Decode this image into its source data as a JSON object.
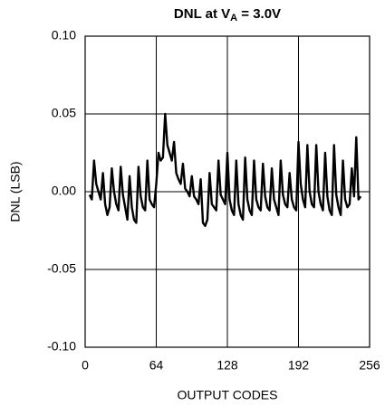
{
  "chart_data": {
    "type": "line",
    "title": [
      "DNL at V",
      "A",
      " = 3.0V"
    ],
    "x_label": "OUTPUT CODES",
    "y_label": "DNL (LSB)",
    "xlim": [
      0,
      256
    ],
    "xticks": [
      0,
      64,
      128,
      192,
      256
    ],
    "ylim": [
      -0.1,
      0.1
    ],
    "yticks": [
      {
        "value": -0.1,
        "label": "-0.10"
      },
      -0.05,
      {
        "value": 0,
        "label": "0.00"
      },
      0.05,
      {
        "value": 0.1,
        "label": "0.10"
      }
    ],
    "grid": true,
    "series": [
      {
        "color": "#000000",
        "x": [
          4,
          6,
          8,
          10,
          12,
          14,
          16,
          18,
          20,
          22,
          24,
          26,
          28,
          30,
          32,
          34,
          36,
          38,
          40,
          42,
          44,
          46,
          48,
          50,
          52,
          54,
          56,
          58,
          60,
          62,
          64,
          66,
          68,
          70,
          72,
          74,
          76,
          78,
          80,
          82,
          84,
          86,
          88,
          90,
          92,
          94,
          96,
          98,
          100,
          102,
          104,
          106,
          108,
          110,
          112,
          114,
          116,
          118,
          120,
          122,
          124,
          126,
          128,
          130,
          132,
          134,
          136,
          138,
          140,
          142,
          144,
          146,
          148,
          150,
          152,
          154,
          156,
          158,
          160,
          162,
          164,
          166,
          168,
          170,
          172,
          174,
          176,
          178,
          180,
          182,
          184,
          186,
          188,
          190,
          192,
          194,
          196,
          198,
          200,
          202,
          204,
          206,
          208,
          210,
          212,
          214,
          216,
          218,
          220,
          222,
          224,
          226,
          228,
          230,
          232,
          234,
          236,
          238,
          240,
          242,
          244,
          246,
          248
        ],
        "values": [
          -0.002,
          -0.005,
          0.02,
          0.005,
          0.0,
          -0.005,
          0.012,
          -0.008,
          -0.015,
          -0.01,
          0.015,
          0.0,
          -0.008,
          -0.012,
          0.016,
          -0.002,
          -0.01,
          -0.018,
          0.01,
          -0.01,
          -0.018,
          -0.02,
          0.016,
          -0.003,
          -0.01,
          -0.012,
          0.02,
          -0.005,
          -0.008,
          -0.01,
          0.005,
          0.025,
          0.02,
          0.022,
          0.05,
          0.03,
          0.025,
          0.02,
          0.032,
          0.012,
          0.008,
          0.005,
          0.018,
          0.002,
          0.0,
          -0.003,
          0.01,
          -0.003,
          -0.005,
          -0.008,
          0.008,
          -0.02,
          -0.022,
          -0.018,
          0.012,
          -0.008,
          -0.01,
          -0.012,
          0.02,
          -0.002,
          -0.005,
          -0.008,
          0.025,
          -0.005,
          -0.012,
          -0.015,
          0.02,
          -0.008,
          -0.015,
          -0.018,
          0.022,
          -0.005,
          -0.012,
          -0.015,
          0.02,
          -0.005,
          -0.01,
          -0.012,
          0.018,
          -0.003,
          -0.01,
          -0.012,
          0.015,
          -0.005,
          -0.01,
          -0.015,
          0.02,
          -0.002,
          -0.008,
          -0.01,
          0.012,
          -0.005,
          -0.01,
          -0.012,
          0.032,
          0.005,
          -0.005,
          -0.01,
          0.03,
          0.0,
          -0.008,
          -0.01,
          0.03,
          0.0,
          -0.008,
          -0.012,
          0.025,
          -0.003,
          -0.012,
          -0.015,
          0.03,
          -0.002,
          -0.01,
          -0.015,
          0.02,
          -0.005,
          -0.01,
          -0.008,
          0.015,
          -0.003,
          0.035,
          -0.005,
          -0.003
        ]
      }
    ]
  }
}
